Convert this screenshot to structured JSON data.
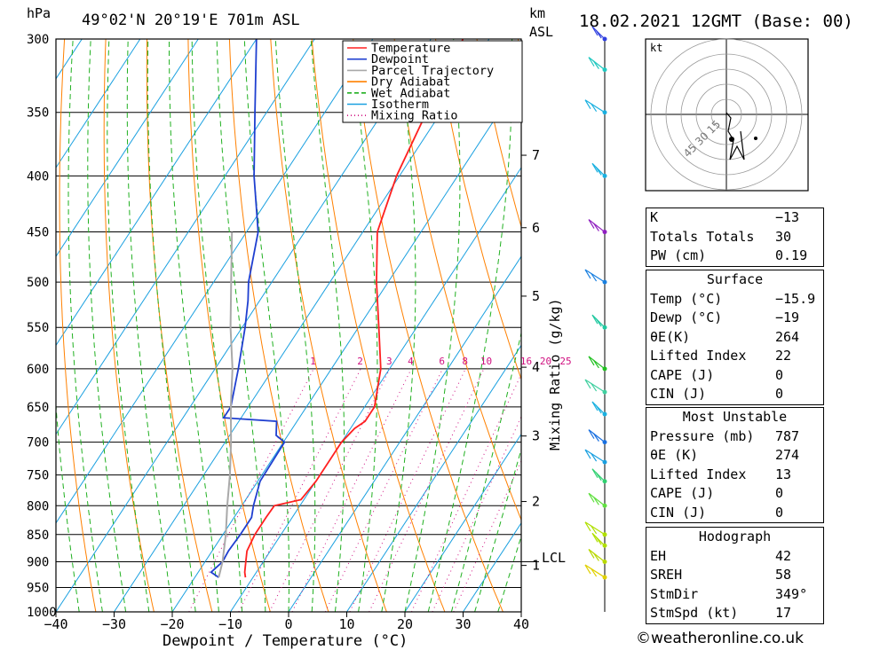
{
  "header": {
    "pressure_unit": "hPa",
    "location": "49°02'N  20°19'E  701m  ASL",
    "km_label": "km",
    "asl_label": "ASL",
    "datetime": "18.02.2021  12GMT  (Base: 00)"
  },
  "chart_data": {
    "type": "skew-t",
    "xlabel": "Dewpoint / Temperature (°C)",
    "ylabel": "hPa",
    "xlim": [
      -40,
      40
    ],
    "ylim": [
      1000,
      300
    ],
    "log_pressure": true,
    "x_ticks": [
      "−40",
      "−30",
      "−20",
      "−10",
      "0",
      "10",
      "20",
      "30",
      "40"
    ],
    "pressure_ticks": [
      300,
      350,
      400,
      450,
      500,
      550,
      600,
      650,
      700,
      750,
      800,
      850,
      900,
      950,
      1000
    ],
    "km_ticks": [
      {
        "km": "1",
        "p": 907
      },
      {
        "km": "2",
        "p": 793
      },
      {
        "km": "3",
        "p": 691
      },
      {
        "km": "4",
        "p": 598
      },
      {
        "km": "5",
        "p": 515
      },
      {
        "km": "6",
        "p": 446
      },
      {
        "km": "7",
        "p": 383
      }
    ],
    "lcl_label": "LCL",
    "lcl_pressure": 900,
    "mixing_ratio_label": "Mixing Ratio (g/kg)",
    "mixing_ratio_values": [
      "1",
      "2",
      "3",
      "4",
      "6",
      "8",
      "10",
      "16",
      "20",
      "25"
    ],
    "legend": [
      {
        "name": "Temperature",
        "color": "#ff2020",
        "style": "solid"
      },
      {
        "name": "Dewpoint",
        "color": "#1f3fd0",
        "style": "solid"
      },
      {
        "name": "Parcel Trajectory",
        "color": "#a9a9a9",
        "style": "solid"
      },
      {
        "name": "Dry Adiabat",
        "color": "#ff8000",
        "style": "solid"
      },
      {
        "name": "Wet Adiabat",
        "color": "#20b020",
        "style": "dashed"
      },
      {
        "name": "Isotherm",
        "color": "#1aa0e0",
        "style": "solid"
      },
      {
        "name": "Mixing Ratio",
        "color": "#d01080",
        "style": "dotted"
      }
    ],
    "series": [
      {
        "name": "Temperature",
        "points": [
          [
            930,
            -11.3
          ],
          [
            920,
            -12.0
          ],
          [
            900,
            -13.0
          ],
          [
            880,
            -14.0
          ],
          [
            850,
            -14.5
          ],
          [
            820,
            -14.5
          ],
          [
            800,
            -14.4
          ],
          [
            790,
            -10.5
          ],
          [
            760,
            -10.0
          ],
          [
            700,
            -10.0
          ],
          [
            680,
            -9.3
          ],
          [
            670,
            -8.3
          ],
          [
            650,
            -8.3
          ],
          [
            600,
            -11.5
          ],
          [
            550,
            -16.5
          ],
          [
            500,
            -22.0
          ],
          [
            450,
            -27.5
          ],
          [
            400,
            -30.5
          ],
          [
            350,
            -32.5
          ],
          [
            330,
            -33.0
          ],
          [
            300,
            -34.5
          ]
        ]
      },
      {
        "name": "Dewpoint",
        "points": [
          [
            930,
            -15.9
          ],
          [
            920,
            -17.8
          ],
          [
            900,
            -17.0
          ],
          [
            880,
            -17.2
          ],
          [
            850,
            -17.0
          ],
          [
            820,
            -17.0
          ],
          [
            800,
            -18.0
          ],
          [
            760,
            -19.6
          ],
          [
            700,
            -19.8
          ],
          [
            690,
            -22.0
          ],
          [
            670,
            -23.5
          ],
          [
            665,
            -33.0
          ],
          [
            650,
            -33.0
          ],
          [
            600,
            -36.0
          ],
          [
            550,
            -39.5
          ],
          [
            520,
            -42.0
          ],
          [
            500,
            -44.0
          ],
          [
            450,
            -48.0
          ],
          [
            400,
            -55.0
          ],
          [
            350,
            -62.0
          ],
          [
            300,
            -70.0
          ]
        ]
      },
      {
        "name": "Parcel Trajectory",
        "points": [
          [
            930,
            -15.9
          ],
          [
            900,
            -17.0
          ],
          [
            850,
            -19.5
          ],
          [
            800,
            -22.5
          ],
          [
            750,
            -25.5
          ],
          [
            700,
            -29.0
          ],
          [
            650,
            -33.0
          ],
          [
            600,
            -37.0
          ],
          [
            550,
            -42.0
          ],
          [
            500,
            -47.0
          ],
          [
            450,
            -52.5
          ]
        ]
      }
    ]
  },
  "winds": {
    "colors_note": "barbs coloured by height",
    "levels": [
      {
        "p": 930,
        "color": "#e0d000"
      },
      {
        "p": 900,
        "color": "#b8d800"
      },
      {
        "p": 870,
        "color": "#b0e000"
      },
      {
        "p": 850,
        "color": "#b0e000"
      },
      {
        "p": 800,
        "color": "#60e040"
      },
      {
        "p": 760,
        "color": "#30d070"
      },
      {
        "p": 730,
        "color": "#1aa0e0"
      },
      {
        "p": 700,
        "color": "#1a70e0"
      },
      {
        "p": 660,
        "color": "#1ab0e0"
      },
      {
        "p": 630,
        "color": "#40d0a0"
      },
      {
        "p": 600,
        "color": "#20c020"
      },
      {
        "p": 550,
        "color": "#20c8a0"
      },
      {
        "p": 500,
        "color": "#1a80e0"
      },
      {
        "p": 450,
        "color": "#9020c0"
      },
      {
        "p": 400,
        "color": "#1ab0e0"
      },
      {
        "p": 350,
        "color": "#1ab0e0"
      },
      {
        "p": 320,
        "color": "#20c8c0"
      },
      {
        "p": 300,
        "color": "#3040e0"
      }
    ]
  },
  "hodograph": {
    "unit": "kt",
    "rings": [
      "15",
      "30",
      "45"
    ]
  },
  "indices": {
    "rows": [
      {
        "label": "K",
        "value": "−13"
      },
      {
        "label": "Totals Totals",
        "value": "30"
      },
      {
        "label": "PW (cm)",
        "value": "0.19"
      }
    ]
  },
  "surface": {
    "title": "Surface",
    "rows": [
      {
        "label": "Temp (°C)",
        "value": "−15.9"
      },
      {
        "label": "Dewp (°C)",
        "value": "−19"
      },
      {
        "label": "θE(K)",
        "value": "264"
      },
      {
        "label": "Lifted Index",
        "value": "22"
      },
      {
        "label": "CAPE (J)",
        "value": "0"
      },
      {
        "label": "CIN (J)",
        "value": "0"
      }
    ]
  },
  "most_unstable": {
    "title": "Most Unstable",
    "rows": [
      {
        "label": "Pressure (mb)",
        "value": "787"
      },
      {
        "label": "θE (K)",
        "value": "274"
      },
      {
        "label": "Lifted Index",
        "value": "13"
      },
      {
        "label": "CAPE (J)",
        "value": "0"
      },
      {
        "label": "CIN (J)",
        "value": "0"
      }
    ]
  },
  "hodograph_table": {
    "title": "Hodograph",
    "rows": [
      {
        "label": "EH",
        "value": "42"
      },
      {
        "label": "SREH",
        "value": "58"
      },
      {
        "label": "StmDir",
        "value": "349°"
      },
      {
        "label": "StmSpd (kt)",
        "value": "17"
      }
    ]
  },
  "footer": "©weatheronline.co.uk"
}
